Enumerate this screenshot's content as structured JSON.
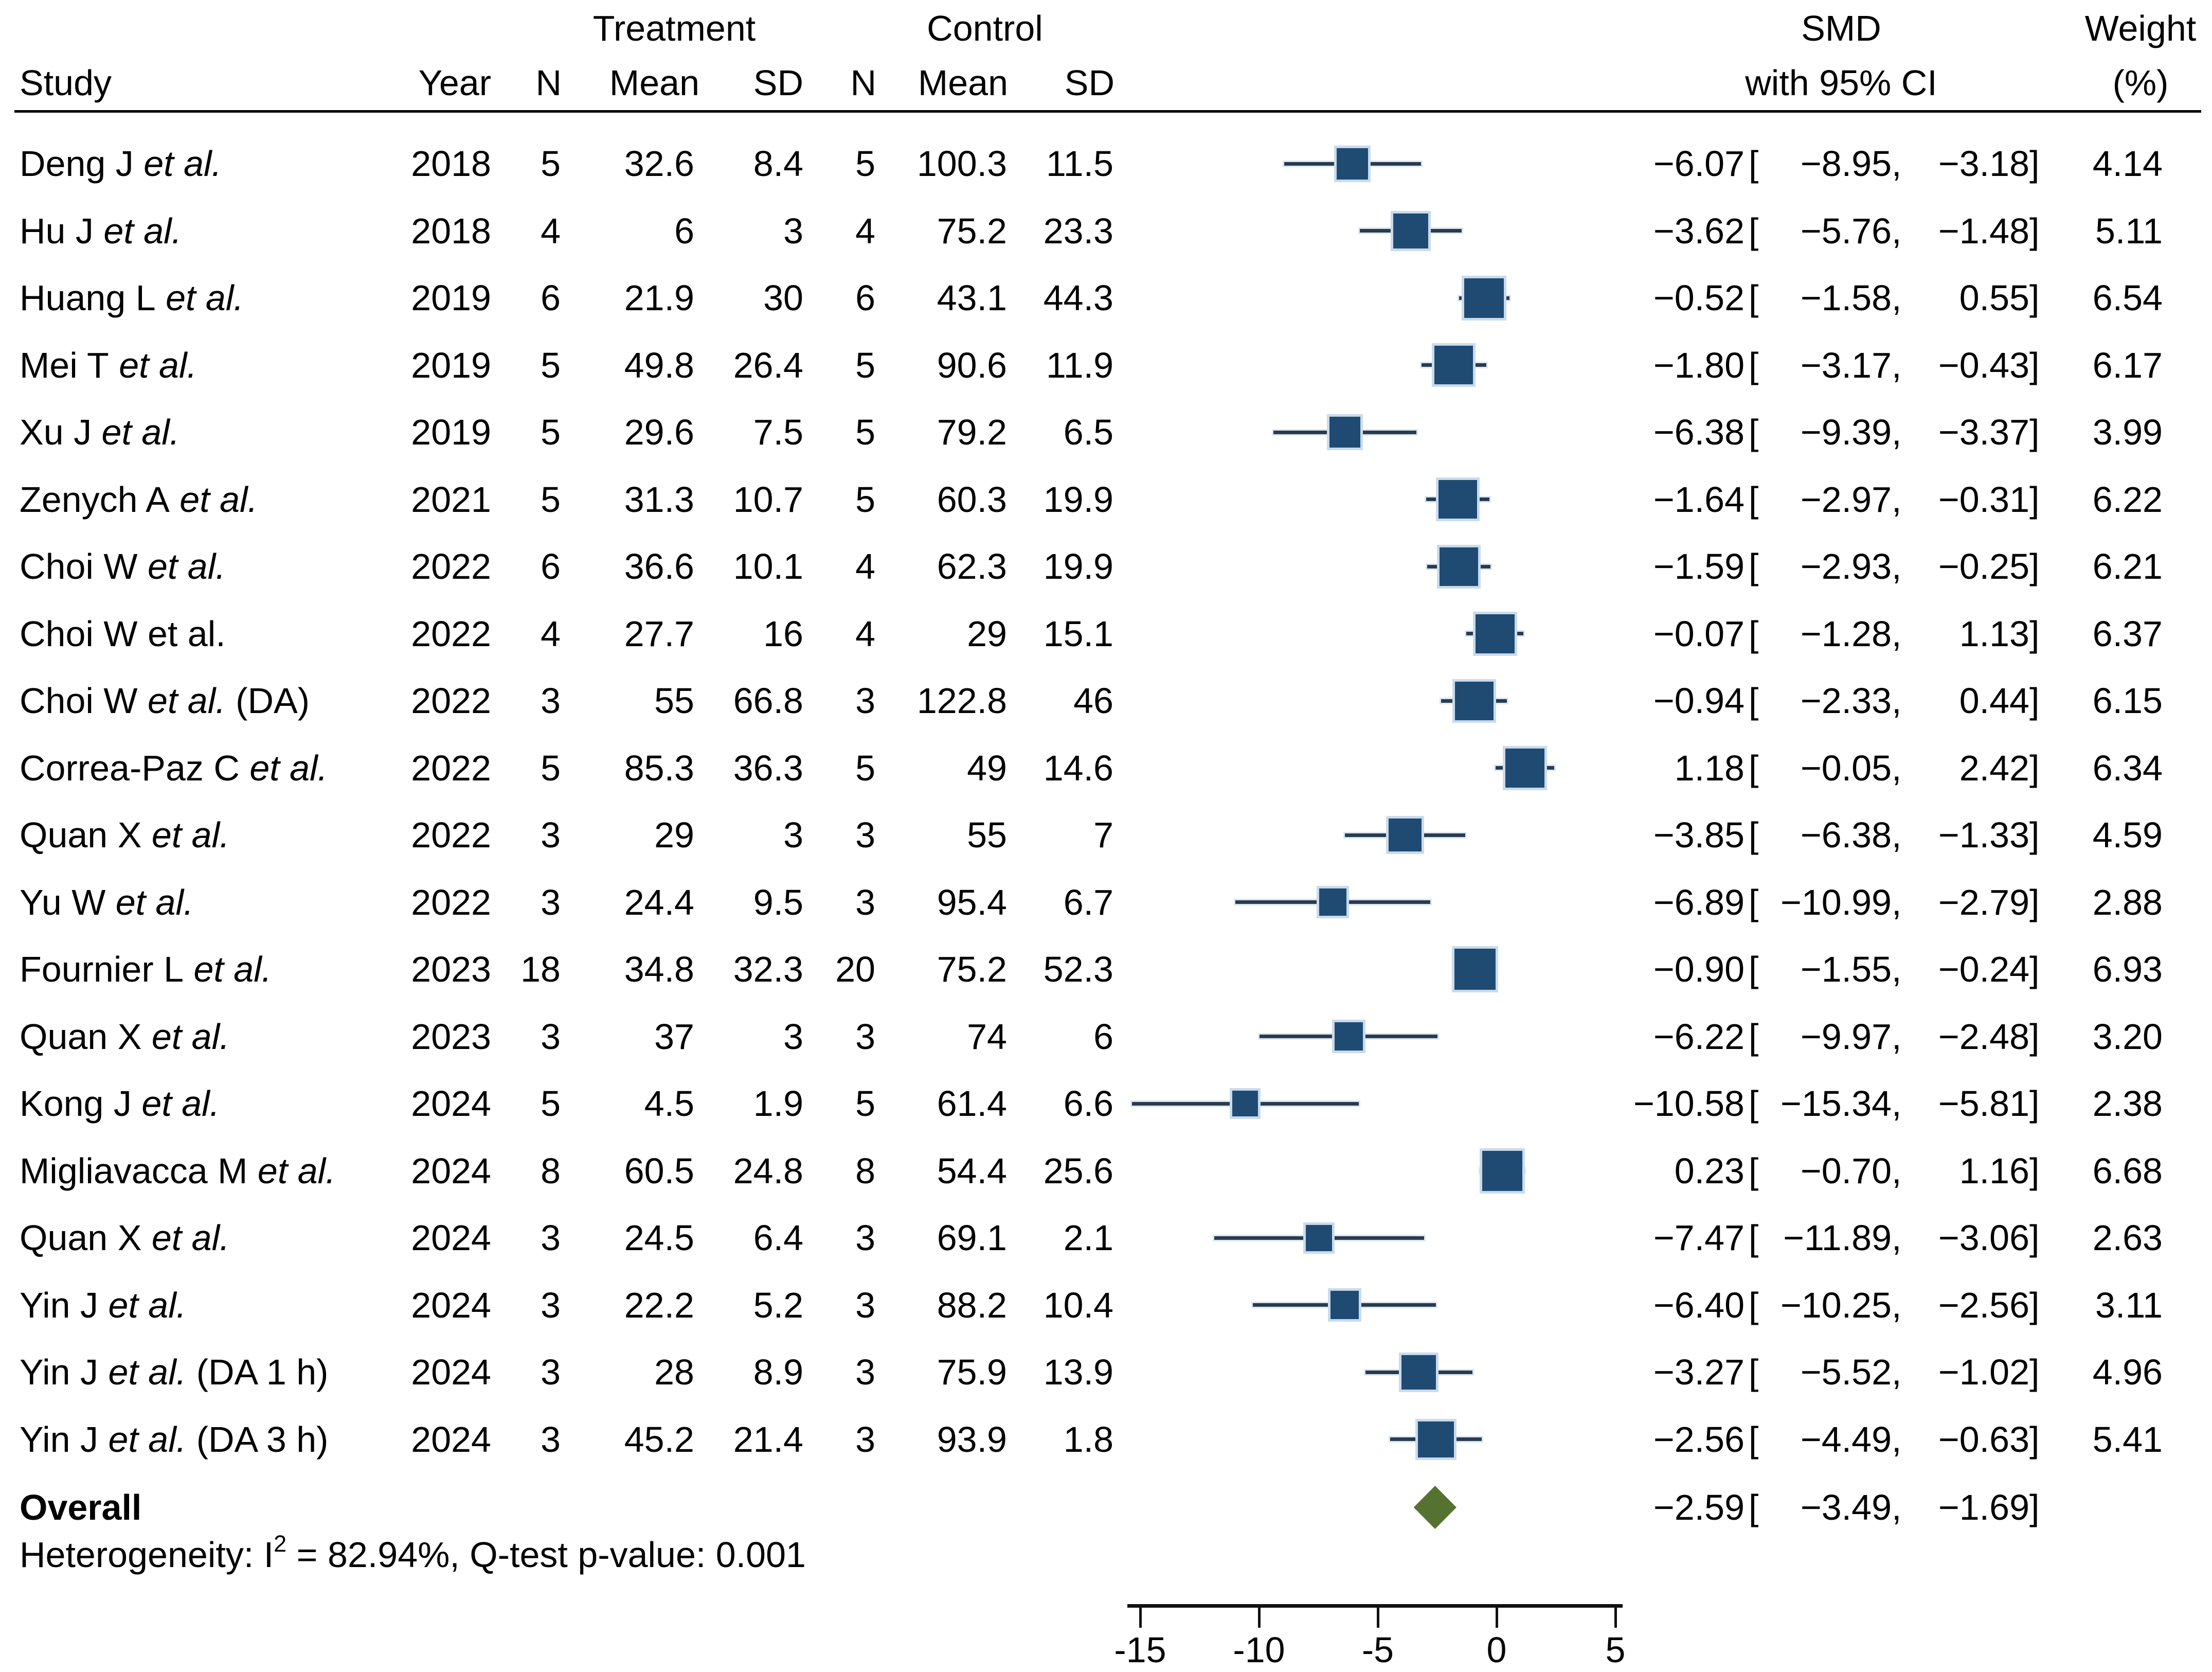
{
  "header": {
    "group_treatment": "Treatment",
    "group_control": "Control",
    "col_study": "Study",
    "col_year": "Year",
    "col_n": "N",
    "col_mean": "Mean",
    "col_sd": "SD",
    "smd_line1": "SMD",
    "smd_line2": "with 95% CI",
    "weight_line1": "Weight",
    "weight_line2": "(%)"
  },
  "chart_data": {
    "type": "forest",
    "effect_measure": "SMD",
    "axis": {
      "ticks": [
        {
          "label": "-15",
          "value": -15
        },
        {
          "label": "-10",
          "value": -10
        },
        {
          "label": "-5",
          "value": -5
        },
        {
          "label": "0",
          "value": 0
        },
        {
          "label": "5",
          "value": 5
        }
      ],
      "range_note": "x axis in SMD units, no reference line shown"
    },
    "studies": [
      {
        "name": "Deng J",
        "etal": "et al.",
        "etal_italic": true,
        "suffix": "",
        "year": "2018",
        "n1": "5",
        "mean1": "32.6",
        "sd1": "8.4",
        "n2": "5",
        "mean2": "100.3",
        "sd2": "11.5",
        "est": "−6.07",
        "lo": "−8.95",
        "hi": "−3.18",
        "weight": "4.14"
      },
      {
        "name": "Hu J",
        "etal": "et al.",
        "etal_italic": true,
        "suffix": "",
        "year": "2018",
        "n1": "4",
        "mean1": "6",
        "sd1": "3",
        "n2": "4",
        "mean2": "75.2",
        "sd2": "23.3",
        "est": "−3.62",
        "lo": "−5.76",
        "hi": "−1.48",
        "weight": "5.11"
      },
      {
        "name": "Huang L",
        "etal": "et al.",
        "etal_italic": true,
        "suffix": "",
        "year": "2019",
        "n1": "6",
        "mean1": "21.9",
        "sd1": "30",
        "n2": "6",
        "mean2": "43.1",
        "sd2": "44.3",
        "est": "−0.52",
        "lo": "−1.58",
        "hi": "0.55",
        "weight": "6.54"
      },
      {
        "name": "Mei T",
        "etal": "et al.",
        "etal_italic": true,
        "suffix": "",
        "year": "2019",
        "n1": "5",
        "mean1": "49.8",
        "sd1": "26.4",
        "n2": "5",
        "mean2": "90.6",
        "sd2": "11.9",
        "est": "−1.80",
        "lo": "−3.17",
        "hi": "−0.43",
        "weight": "6.17"
      },
      {
        "name": "Xu J",
        "etal": "et al.",
        "etal_italic": true,
        "suffix": "",
        "year": "2019",
        "n1": "5",
        "mean1": "29.6",
        "sd1": "7.5",
        "n2": "5",
        "mean2": "79.2",
        "sd2": "6.5",
        "est": "−6.38",
        "lo": "−9.39",
        "hi": "−3.37",
        "weight": "3.99"
      },
      {
        "name": "Zenych A",
        "etal": "et al.",
        "etal_italic": true,
        "suffix": "",
        "year": "2021",
        "n1": "5",
        "mean1": "31.3",
        "sd1": "10.7",
        "n2": "5",
        "mean2": "60.3",
        "sd2": "19.9",
        "est": "−1.64",
        "lo": "−2.97",
        "hi": "−0.31",
        "weight": "6.22"
      },
      {
        "name": "Choi W",
        "etal": "et al.",
        "etal_italic": true,
        "suffix": "",
        "year": "2022",
        "n1": "6",
        "mean1": "36.6",
        "sd1": "10.1",
        "n2": "4",
        "mean2": "62.3",
        "sd2": "19.9",
        "est": "−1.59",
        "lo": "−2.93",
        "hi": "−0.25",
        "weight": "6.21"
      },
      {
        "name": "Choi W",
        "etal": "et al.",
        "etal_italic": false,
        "suffix": "",
        "year": "2022",
        "n1": "4",
        "mean1": "27.7",
        "sd1": "16",
        "n2": "4",
        "mean2": "29",
        "sd2": "15.1",
        "est": "−0.07",
        "lo": "−1.28",
        "hi": "1.13",
        "weight": "6.37"
      },
      {
        "name": "Choi W",
        "etal": "et al.",
        "etal_italic": true,
        "suffix": "(DA)",
        "year": "2022",
        "n1": "3",
        "mean1": "55",
        "sd1": "66.8",
        "n2": "3",
        "mean2": "122.8",
        "sd2": "46",
        "est": "−0.94",
        "lo": "−2.33",
        "hi": "0.44",
        "weight": "6.15"
      },
      {
        "name": "Correa-Paz C",
        "etal": "et al.",
        "etal_italic": true,
        "suffix": "",
        "year": "2022",
        "n1": "5",
        "mean1": "85.3",
        "sd1": "36.3",
        "n2": "5",
        "mean2": "49",
        "sd2": "14.6",
        "est": "1.18",
        "lo": "−0.05",
        "hi": "2.42",
        "weight": "6.34"
      },
      {
        "name": "Quan X",
        "etal": "et al.",
        "etal_italic": true,
        "suffix": "",
        "year": "2022",
        "n1": "3",
        "mean1": "29",
        "sd1": "3",
        "n2": "3",
        "mean2": "55",
        "sd2": "7",
        "est": "−3.85",
        "lo": "−6.38",
        "hi": "−1.33",
        "weight": "4.59"
      },
      {
        "name": "Yu W",
        "etal": "et al.",
        "etal_italic": true,
        "suffix": "",
        "year": "2022",
        "n1": "3",
        "mean1": "24.4",
        "sd1": "9.5",
        "n2": "3",
        "mean2": "95.4",
        "sd2": "6.7",
        "est": "−6.89",
        "lo": "−10.99",
        "hi": "−2.79",
        "weight": "2.88"
      },
      {
        "name": "Fournier L",
        "etal": "et al.",
        "etal_italic": true,
        "suffix": "",
        "year": "2023",
        "n1": "18",
        "mean1": "34.8",
        "sd1": "32.3",
        "n2": "20",
        "mean2": "75.2",
        "sd2": "52.3",
        "est": "−0.90",
        "lo": "−1.55",
        "hi": "−0.24",
        "weight": "6.93"
      },
      {
        "name": "Quan X",
        "etal": "et al.",
        "etal_italic": true,
        "suffix": "",
        "year": "2023",
        "n1": "3",
        "mean1": "37",
        "sd1": "3",
        "n2": "3",
        "mean2": "74",
        "sd2": "6",
        "est": "−6.22",
        "lo": "−9.97",
        "hi": "−2.48",
        "weight": "3.20"
      },
      {
        "name": "Kong J",
        "etal": "et al.",
        "etal_italic": true,
        "suffix": "",
        "year": "2024",
        "n1": "5",
        "mean1": "4.5",
        "sd1": "1.9",
        "n2": "5",
        "mean2": "61.4",
        "sd2": "6.6",
        "est": "−10.58",
        "lo": "−15.34",
        "hi": "−5.81",
        "weight": "2.38"
      },
      {
        "name": "Migliavacca M",
        "etal": "et al.",
        "etal_italic": true,
        "suffix": "",
        "year": "2024",
        "n1": "8",
        "mean1": "60.5",
        "sd1": "24.8",
        "n2": "8",
        "mean2": "54.4",
        "sd2": "25.6",
        "est": "0.23",
        "lo": "−0.70",
        "hi": "1.16",
        "weight": "6.68"
      },
      {
        "name": "Quan X",
        "etal": "et al.",
        "etal_italic": true,
        "suffix": "",
        "year": "2024",
        "n1": "3",
        "mean1": "24.5",
        "sd1": "6.4",
        "n2": "3",
        "mean2": "69.1",
        "sd2": "2.1",
        "est": "−7.47",
        "lo": "−11.89",
        "hi": "−3.06",
        "weight": "2.63"
      },
      {
        "name": "Yin J",
        "etal": "et al.",
        "etal_italic": true,
        "suffix": "",
        "year": "2024",
        "n1": "3",
        "mean1": "22.2",
        "sd1": "5.2",
        "n2": "3",
        "mean2": "88.2",
        "sd2": "10.4",
        "est": "−6.40",
        "lo": "−10.25",
        "hi": "−2.56",
        "weight": "3.11"
      },
      {
        "name": "Yin J",
        "etal": "et al.",
        "etal_italic": true,
        "suffix": "(DA 1 h)",
        "year": "2024",
        "n1": "3",
        "mean1": "28",
        "sd1": "8.9",
        "n2": "3",
        "mean2": "75.9",
        "sd2": "13.9",
        "est": "−3.27",
        "lo": "−5.52",
        "hi": "−1.02",
        "weight": "4.96"
      },
      {
        "name": "Yin J",
        "etal": "et al.",
        "etal_italic": true,
        "suffix": "(DA 3 h)",
        "year": "2024",
        "n1": "3",
        "mean1": "45.2",
        "sd1": "21.4",
        "n2": "3",
        "mean2": "93.9",
        "sd2": "1.8",
        "est": "−2.56",
        "lo": "−4.49",
        "hi": "−0.63",
        "weight": "5.41"
      }
    ],
    "overall": {
      "label": "Overall",
      "est": "−2.59",
      "lo": "−3.49",
      "hi": "−1.69"
    },
    "heterogeneity": {
      "prefix": "Heterogeneity: I",
      "sup": "2",
      "rest": " = 82.94%, Q-test p-value: 0.001"
    }
  },
  "colors": {
    "marker_fill": "#1f4b73",
    "marker_edge": "#c9dbec",
    "ci_line": "#2a3b4d",
    "diamond_fill": "#557231",
    "axis": "#111111"
  }
}
